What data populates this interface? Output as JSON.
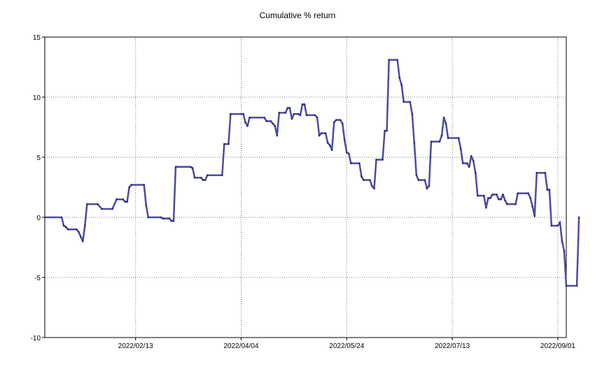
{
  "chart_data": {
    "type": "line",
    "title": "Cumulative % return",
    "xlabel": "",
    "ylabel": "",
    "grid": true,
    "legend": "none",
    "x_range": [
      "2022-01-01",
      "2022-09-05"
    ],
    "ylim": [
      -10,
      15
    ],
    "y_ticks": [
      15,
      10,
      5,
      0,
      -5,
      -10
    ],
    "x_ticks": [
      "2022/02/13",
      "2022/04/04",
      "2022/05/24",
      "2022/07/13",
      "2022/09/01"
    ],
    "x_tick_dates": [
      "2022-02-13",
      "2022-04-04",
      "2022-05-24",
      "2022-07-13",
      "2022-09-01"
    ],
    "series": [
      {
        "color": "#4B4BA0",
        "points": [
          [
            "2022-01-01",
            0.0
          ],
          [
            "2022-01-09",
            0.0
          ],
          [
            "2022-01-10",
            -0.7
          ],
          [
            "2022-01-11",
            -0.8
          ],
          [
            "2022-01-12",
            -1.0
          ],
          [
            "2022-01-16",
            -1.0
          ],
          [
            "2022-01-17",
            -1.2
          ],
          [
            "2022-01-18",
            -1.6
          ],
          [
            "2022-01-19",
            -2.0
          ],
          [
            "2022-01-20",
            -0.7
          ],
          [
            "2022-01-21",
            1.1
          ],
          [
            "2022-01-26",
            1.1
          ],
          [
            "2022-01-28",
            0.7
          ],
          [
            "2022-02-02",
            0.7
          ],
          [
            "2022-02-04",
            1.5
          ],
          [
            "2022-02-07",
            1.5
          ],
          [
            "2022-02-08",
            1.3
          ],
          [
            "2022-02-09",
            1.3
          ],
          [
            "2022-02-10",
            2.5
          ],
          [
            "2022-02-11",
            2.7
          ],
          [
            "2022-02-17",
            2.7
          ],
          [
            "2022-02-18",
            1.0
          ],
          [
            "2022-02-19",
            0.0
          ],
          [
            "2022-02-25",
            0.0
          ],
          [
            "2022-02-26",
            -0.1
          ],
          [
            "2022-03-01",
            -0.1
          ],
          [
            "2022-03-02",
            -0.3
          ],
          [
            "2022-03-03",
            -0.3
          ],
          [
            "2022-03-04",
            4.2
          ],
          [
            "2022-03-11",
            4.2
          ],
          [
            "2022-03-12",
            4.1
          ],
          [
            "2022-03-13",
            3.3
          ],
          [
            "2022-03-16",
            3.3
          ],
          [
            "2022-03-17",
            3.1
          ],
          [
            "2022-03-18",
            3.1
          ],
          [
            "2022-03-19",
            3.5
          ],
          [
            "2022-03-26",
            3.5
          ],
          [
            "2022-03-27",
            6.1
          ],
          [
            "2022-03-29",
            6.1
          ],
          [
            "2022-03-30",
            8.6
          ],
          [
            "2022-04-05",
            8.6
          ],
          [
            "2022-04-06",
            7.9
          ],
          [
            "2022-04-07",
            7.6
          ],
          [
            "2022-04-08",
            8.3
          ],
          [
            "2022-04-15",
            8.3
          ],
          [
            "2022-04-16",
            8.0
          ],
          [
            "2022-04-18",
            8.0
          ],
          [
            "2022-04-19",
            7.8
          ],
          [
            "2022-04-20",
            7.6
          ],
          [
            "2022-04-21",
            6.8
          ],
          [
            "2022-04-22",
            8.7
          ],
          [
            "2022-04-25",
            8.7
          ],
          [
            "2022-04-26",
            9.1
          ],
          [
            "2022-04-27",
            9.1
          ],
          [
            "2022-04-28",
            8.2
          ],
          [
            "2022-04-29",
            8.6
          ],
          [
            "2022-05-01",
            8.6
          ],
          [
            "2022-05-02",
            8.5
          ],
          [
            "2022-05-03",
            9.4
          ],
          [
            "2022-05-04",
            9.4
          ],
          [
            "2022-05-05",
            8.5
          ],
          [
            "2022-05-09",
            8.5
          ],
          [
            "2022-05-10",
            8.3
          ],
          [
            "2022-05-11",
            6.8
          ],
          [
            "2022-05-12",
            7.0
          ],
          [
            "2022-05-14",
            7.0
          ],
          [
            "2022-05-15",
            6.2
          ],
          [
            "2022-05-16",
            6.0
          ],
          [
            "2022-05-17",
            5.6
          ],
          [
            "2022-05-18",
            7.9
          ],
          [
            "2022-05-19",
            8.1
          ],
          [
            "2022-05-21",
            8.1
          ],
          [
            "2022-05-22",
            7.8
          ],
          [
            "2022-05-23",
            6.4
          ],
          [
            "2022-05-24",
            5.4
          ],
          [
            "2022-05-25",
            5.3
          ],
          [
            "2022-05-26",
            4.5
          ],
          [
            "2022-05-30",
            4.5
          ],
          [
            "2022-05-31",
            3.4
          ],
          [
            "2022-06-01",
            3.1
          ],
          [
            "2022-06-04",
            3.1
          ],
          [
            "2022-06-05",
            2.6
          ],
          [
            "2022-06-06",
            2.4
          ],
          [
            "2022-06-07",
            4.8
          ],
          [
            "2022-06-10",
            4.8
          ],
          [
            "2022-06-11",
            7.2
          ],
          [
            "2022-06-12",
            7.2
          ],
          [
            "2022-06-13",
            13.1
          ],
          [
            "2022-06-17",
            13.1
          ],
          [
            "2022-06-18",
            11.6
          ],
          [
            "2022-06-19",
            11.0
          ],
          [
            "2022-06-20",
            9.6
          ],
          [
            "2022-06-23",
            9.6
          ],
          [
            "2022-06-24",
            8.6
          ],
          [
            "2022-06-25",
            6.2
          ],
          [
            "2022-06-26",
            3.5
          ],
          [
            "2022-06-27",
            3.1
          ],
          [
            "2022-06-30",
            3.1
          ],
          [
            "2022-07-01",
            2.4
          ],
          [
            "2022-07-02",
            2.6
          ],
          [
            "2022-07-03",
            6.3
          ],
          [
            "2022-07-07",
            6.3
          ],
          [
            "2022-07-08",
            6.8
          ],
          [
            "2022-07-09",
            8.3
          ],
          [
            "2022-07-10",
            7.8
          ],
          [
            "2022-07-11",
            6.6
          ],
          [
            "2022-07-16",
            6.6
          ],
          [
            "2022-07-17",
            5.7
          ],
          [
            "2022-07-18",
            4.5
          ],
          [
            "2022-07-20",
            4.5
          ],
          [
            "2022-07-21",
            4.2
          ],
          [
            "2022-07-22",
            5.1
          ],
          [
            "2022-07-23",
            4.7
          ],
          [
            "2022-07-24",
            3.7
          ],
          [
            "2022-07-25",
            1.8
          ],
          [
            "2022-07-28",
            1.8
          ],
          [
            "2022-07-29",
            0.8
          ],
          [
            "2022-07-30",
            1.6
          ],
          [
            "2022-07-31",
            1.6
          ],
          [
            "2022-08-01",
            1.9
          ],
          [
            "2022-08-03",
            1.9
          ],
          [
            "2022-08-04",
            1.5
          ],
          [
            "2022-08-05",
            1.5
          ],
          [
            "2022-08-06",
            1.9
          ],
          [
            "2022-08-07",
            1.4
          ],
          [
            "2022-08-08",
            1.1
          ],
          [
            "2022-08-12",
            1.1
          ],
          [
            "2022-08-13",
            2.0
          ],
          [
            "2022-08-18",
            2.0
          ],
          [
            "2022-08-19",
            1.6
          ],
          [
            "2022-08-20",
            0.9
          ],
          [
            "2022-08-21",
            0.1
          ],
          [
            "2022-08-22",
            3.7
          ],
          [
            "2022-08-26",
            3.7
          ],
          [
            "2022-08-27",
            2.3
          ],
          [
            "2022-08-28",
            2.3
          ],
          [
            "2022-08-29",
            -0.7
          ],
          [
            "2022-09-01",
            -0.7
          ],
          [
            "2022-09-02",
            -0.4
          ],
          [
            "2022-09-03",
            -2.0
          ],
          [
            "2022-09-04",
            -2.8
          ],
          [
            "2022-09-05",
            -5.7
          ],
          [
            "2022-09-10",
            -5.7
          ],
          [
            "2022-09-11",
            0.0
          ]
        ]
      }
    ]
  }
}
